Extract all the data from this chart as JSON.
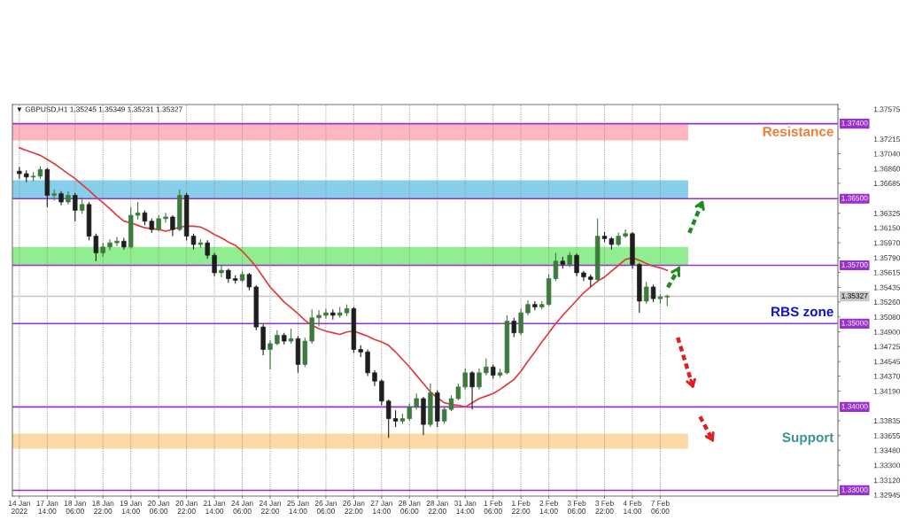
{
  "chart_data": {
    "type": "candlestick",
    "title": "▼ GBPUSD,H1 1.35245 1.35349 1.35231 1.35327",
    "categories": [
      "14 Jan 2022",
      null,
      null,
      null,
      "17 Jan 14:00",
      null,
      null,
      null,
      "18 Jan 06:00",
      null,
      null,
      null,
      "18 Jan 22:00",
      null,
      null,
      null,
      "19 Jan 14:00",
      null,
      null,
      null,
      "20 Jan 06:00",
      null,
      null,
      null,
      "20 Jan 22:00",
      null,
      null,
      null,
      "21 Jan 14:00",
      null,
      null,
      null,
      "24 Jan 06:00",
      null,
      null,
      null,
      "24 Jan 22:00",
      null,
      null,
      null,
      "25 Jan 14:00",
      null,
      null,
      null,
      "26 Jan 06:00",
      null,
      null,
      null,
      "26 Jan 22:00",
      null,
      null,
      null,
      "27 Jan 14:00",
      null,
      null,
      null,
      "28 Jan 06:00",
      null,
      null,
      null,
      "28 Jan 22:00",
      null,
      null,
      null,
      "31 Jan 14:00",
      null,
      null,
      null,
      "1 Feb 06:00",
      null,
      null,
      null,
      "1 Feb 22:00",
      null,
      null,
      null,
      "2 Feb 14:00",
      null,
      null,
      null,
      "3 Feb 06:00",
      null,
      null,
      null,
      "3 Feb 22:00",
      null,
      null,
      null,
      "4 Feb 14:00",
      null,
      null,
      null,
      "7 Feb 06:00",
      null,
      null,
      null,
      null,
      null,
      null,
      null,
      null,
      null,
      null,
      null,
      null,
      null,
      null,
      null,
      null,
      null,
      null,
      null,
      null,
      null,
      null,
      null,
      null,
      null
    ],
    "ohlc": [
      [
        1.3683,
        1.3688,
        1.3674,
        1.368
      ],
      [
        1.368,
        1.3684,
        1.367,
        1.3676
      ],
      [
        1.3676,
        1.3682,
        1.3671,
        1.3677
      ],
      [
        1.3677,
        1.3689,
        1.3674,
        1.3685
      ],
      [
        1.3685,
        1.3687,
        1.364,
        1.3654
      ],
      [
        1.3654,
        1.3661,
        1.3648,
        1.3656
      ],
      [
        1.3656,
        1.3659,
        1.3642,
        1.3646
      ],
      [
        1.3646,
        1.3659,
        1.3643,
        1.3654
      ],
      [
        1.3654,
        1.3657,
        1.3623,
        1.3636
      ],
      [
        1.3636,
        1.3651,
        1.3632,
        1.3643
      ],
      [
        1.3643,
        1.3646,
        1.36,
        1.3605
      ],
      [
        1.3605,
        1.3608,
        1.3575,
        1.3585
      ],
      [
        1.3585,
        1.3597,
        1.358,
        1.3592
      ],
      [
        1.3592,
        1.3601,
        1.3588,
        1.3597
      ],
      [
        1.3597,
        1.3604,
        1.3593,
        1.3599
      ],
      [
        1.3599,
        1.3603,
        1.3589,
        1.3592
      ],
      [
        1.3592,
        1.364,
        1.359,
        1.363
      ],
      [
        1.363,
        1.3646,
        1.3625,
        1.3633
      ],
      [
        1.3633,
        1.3636,
        1.3618,
        1.3623
      ],
      [
        1.3623,
        1.3626,
        1.3609,
        1.3613
      ],
      [
        1.3613,
        1.363,
        1.3611,
        1.3626
      ],
      [
        1.3626,
        1.3633,
        1.3621,
        1.3628
      ],
      [
        1.3628,
        1.363,
        1.3605,
        1.3613
      ],
      [
        1.3613,
        1.3661,
        1.3611,
        1.3654
      ],
      [
        1.3654,
        1.3657,
        1.36,
        1.3605
      ],
      [
        1.3605,
        1.3608,
        1.3589,
        1.3595
      ],
      [
        1.3595,
        1.3601,
        1.3591,
        1.3597
      ],
      [
        1.3597,
        1.36,
        1.3578,
        1.3582
      ],
      [
        1.3582,
        1.3585,
        1.3557,
        1.3561
      ],
      [
        1.3561,
        1.357,
        1.3556,
        1.3564
      ],
      [
        1.3564,
        1.3566,
        1.3549,
        1.3554
      ],
      [
        1.3554,
        1.3558,
        1.3548,
        1.3552
      ],
      [
        1.3552,
        1.3563,
        1.355,
        1.3559
      ],
      [
        1.3559,
        1.3561,
        1.354,
        1.3544
      ],
      [
        1.3544,
        1.3546,
        1.3492,
        1.3496
      ],
      [
        1.3496,
        1.3499,
        1.3462,
        1.3469
      ],
      [
        1.3469,
        1.348,
        1.3445,
        1.3476
      ],
      [
        1.3476,
        1.3492,
        1.3474,
        1.3486
      ],
      [
        1.3486,
        1.3489,
        1.3475,
        1.3479
      ],
      [
        1.3479,
        1.3494,
        1.3476,
        1.3482
      ],
      [
        1.3482,
        1.3485,
        1.3441,
        1.3451
      ],
      [
        1.3451,
        1.3483,
        1.3448,
        1.3479
      ],
      [
        1.3479,
        1.3517,
        1.3476,
        1.3507
      ],
      [
        1.3507,
        1.3516,
        1.3497,
        1.351
      ],
      [
        1.351,
        1.3518,
        1.3506,
        1.3513
      ],
      [
        1.3513,
        1.3517,
        1.3505,
        1.351
      ],
      [
        1.351,
        1.352,
        1.3507,
        1.3513
      ],
      [
        1.3513,
        1.3523,
        1.3509,
        1.3518
      ],
      [
        1.3518,
        1.352,
        1.3465,
        1.3469
      ],
      [
        1.3469,
        1.3474,
        1.346,
        1.3466
      ],
      [
        1.3466,
        1.3469,
        1.3437,
        1.3441
      ],
      [
        1.3441,
        1.3444,
        1.3425,
        1.3431
      ],
      [
        1.3431,
        1.3433,
        1.3402,
        1.3407
      ],
      [
        1.3407,
        1.3409,
        1.3363,
        1.3386
      ],
      [
        1.3386,
        1.3396,
        1.3376,
        1.3383
      ],
      [
        1.3383,
        1.3392,
        1.338,
        1.3386
      ],
      [
        1.3386,
        1.3404,
        1.3383,
        1.34
      ],
      [
        1.34,
        1.3416,
        1.3397,
        1.341
      ],
      [
        1.341,
        1.3412,
        1.3366,
        1.3379
      ],
      [
        1.3379,
        1.3428,
        1.3376,
        1.3417
      ],
      [
        1.3417,
        1.342,
        1.3376,
        1.3383
      ],
      [
        1.3383,
        1.3401,
        1.338,
        1.3397
      ],
      [
        1.3397,
        1.3414,
        1.3395,
        1.341
      ],
      [
        1.341,
        1.3428,
        1.3408,
        1.3424
      ],
      [
        1.3424,
        1.3446,
        1.3421,
        1.3441
      ],
      [
        1.3441,
        1.3443,
        1.3397,
        1.3424
      ],
      [
        1.3424,
        1.3446,
        1.3421,
        1.3441
      ],
      [
        1.3441,
        1.3458,
        1.3438,
        1.3448
      ],
      [
        1.3448,
        1.3451,
        1.3434,
        1.3438
      ],
      [
        1.3438,
        1.3446,
        1.3435,
        1.3441
      ],
      [
        1.3441,
        1.351,
        1.3439,
        1.3503
      ],
      [
        1.3503,
        1.3507,
        1.3484,
        1.3489
      ],
      [
        1.3489,
        1.3518,
        1.3486,
        1.3513
      ],
      [
        1.3513,
        1.3528,
        1.351,
        1.3523
      ],
      [
        1.3523,
        1.3527,
        1.3516,
        1.352
      ],
      [
        1.352,
        1.3527,
        1.3517,
        1.3523
      ],
      [
        1.3523,
        1.3559,
        1.3521,
        1.3554
      ],
      [
        1.3554,
        1.3585,
        1.3551,
        1.3575
      ],
      [
        1.3575,
        1.358,
        1.3566,
        1.3571
      ],
      [
        1.3571,
        1.3586,
        1.3568,
        1.3582
      ],
      [
        1.3582,
        1.3584,
        1.3557,
        1.3561
      ],
      [
        1.3561,
        1.3563,
        1.3551,
        1.3556
      ],
      [
        1.3556,
        1.3559,
        1.3544,
        1.3553
      ],
      [
        1.3553,
        1.3626,
        1.355,
        1.3605
      ],
      [
        1.3605,
        1.361,
        1.3598,
        1.3602
      ],
      [
        1.3602,
        1.3604,
        1.3589,
        1.3595
      ],
      [
        1.3595,
        1.3609,
        1.3593,
        1.3605
      ],
      [
        1.3605,
        1.3613,
        1.3603,
        1.3608
      ],
      [
        1.3608,
        1.361,
        1.3566,
        1.3571
      ],
      [
        1.3571,
        1.3573,
        1.3513,
        1.3527
      ],
      [
        1.3527,
        1.355,
        1.3524,
        1.3544
      ],
      [
        1.3544,
        1.3547,
        1.3526,
        1.353
      ],
      [
        1.353,
        1.3535,
        1.3524,
        1.3532
      ],
      [
        1.3532,
        1.3535,
        1.3521,
        1.3533
      ],
      null,
      null,
      null,
      null,
      null,
      null,
      null,
      null,
      null,
      null,
      null,
      null,
      null,
      null,
      null,
      null,
      null,
      null,
      null,
      null,
      null,
      null,
      null,
      null
    ],
    "colors": [
      "#1e1e1e",
      "#1e1e1e",
      "#3d7a3d",
      "#3d7a3d",
      "#1e1e1e",
      "#3d7a3d",
      "#1e1e1e",
      "#3d7a3d",
      "#1e1e1e",
      "#3d7a3d",
      "#1e1e1e",
      "#1e1e1e",
      "#3d7a3d",
      "#3d7a3d",
      "#3d7a3d",
      "#1e1e1e",
      "#3d7a3d",
      "#3d7a3d",
      "#1e1e1e",
      "#1e1e1e",
      "#3d7a3d",
      "#3d7a3d",
      "#1e1e1e",
      "#3d7a3d",
      "#1e1e1e",
      "#1e1e1e",
      "#3d7a3d",
      "#1e1e1e",
      "#1e1e1e",
      "#3d7a3d",
      "#1e1e1e",
      "#1e1e1e",
      "#3d7a3d",
      "#1e1e1e",
      "#1e1e1e",
      "#1e1e1e",
      "#3d7a3d",
      "#3d7a3d",
      "#1e1e1e",
      "#3d7a3d",
      "#1e1e1e",
      "#3d7a3d",
      "#3d7a3d",
      "#3d7a3d",
      "#3d7a3d",
      "#1e1e1e",
      "#3d7a3d",
      "#3d7a3d",
      "#1e1e1e",
      "#1e1e1e",
      "#1e1e1e",
      "#1e1e1e",
      "#1e1e1e",
      "#1e1e1e",
      "#1e1e1e",
      "#3d7a3d",
      "#3d7a3d",
      "#3d7a3d",
      "#1e1e1e",
      "#3d7a3d",
      "#1e1e1e",
      "#3d7a3d",
      "#3d7a3d",
      "#3d7a3d",
      "#3d7a3d",
      "#1e1e1e",
      "#3d7a3d",
      "#3d7a3d",
      "#1e1e1e",
      "#3d7a3d",
      "#3d7a3d",
      "#1e1e1e",
      "#3d7a3d",
      "#3d7a3d",
      "#1e1e1e",
      "#3d7a3d",
      "#3d7a3d",
      "#3d7a3d",
      "#1e1e1e",
      "#3d7a3d",
      "#1e1e1e",
      "#1e1e1e",
      "#1e1e1e",
      "#3d7a3d",
      "#1e1e1e",
      "#1e1e1e",
      "#3d7a3d",
      "#3d7a3d",
      "#1e1e1e",
      "#1e1e1e",
      "#3d7a3d",
      "#1e1e1e",
      "#3d7a3d",
      "#3d7a3d",
      null,
      null,
      null,
      null,
      null,
      null,
      null,
      null,
      null,
      null,
      null,
      null,
      null,
      null,
      null,
      null,
      null,
      null,
      null,
      null,
      null,
      null,
      null,
      null
    ],
    "series": [
      {
        "type": "line",
        "color": "#e03a3a",
        "values": [
          1.3711,
          1.3708,
          1.3705,
          1.3702,
          1.3697,
          1.3692,
          1.3686,
          1.368,
          1.3674,
          1.3667,
          1.366,
          1.3652,
          1.3645,
          1.3638,
          1.363,
          1.3623,
          1.3621,
          1.3618,
          1.3615,
          1.3614,
          1.3613,
          1.3611,
          1.3613,
          1.3616,
          1.3617,
          1.3617,
          1.3616,
          1.3612,
          1.3607,
          1.3603,
          1.3598,
          1.3594,
          1.3587,
          1.3578,
          1.3568,
          1.3556,
          1.3544,
          1.3535,
          1.3526,
          1.3519,
          1.3512,
          1.3504,
          1.3498,
          1.3494,
          1.3491,
          1.3489,
          1.3487,
          1.349,
          1.3491,
          1.3488,
          1.3485,
          1.3481,
          1.3478,
          1.3474,
          1.3466,
          1.3457,
          1.3448,
          1.3438,
          1.3428,
          1.3418,
          1.3411,
          1.3405,
          1.3403,
          1.3402,
          1.34,
          1.3405,
          1.341,
          1.3413,
          1.3416,
          1.3421,
          1.3427,
          1.3433,
          1.3443,
          1.3455,
          1.3466,
          1.3478,
          1.3489,
          1.35,
          1.351,
          1.3519,
          1.3528,
          1.3537,
          1.3544,
          1.3551,
          1.3556,
          1.3563,
          1.357,
          1.3577,
          1.3579,
          1.3576,
          1.3572,
          1.3569,
          1.3567,
          1.3564,
          null,
          null,
          null,
          null,
          null,
          null,
          null,
          null,
          null,
          null,
          null,
          null,
          null,
          null,
          null,
          null,
          null,
          null,
          null,
          null,
          null,
          null,
          null,
          null
        ]
      }
    ],
    "ylim": [
      1.3293,
      1.3763
    ],
    "yticks": [
      1.37575,
      1.37215,
      {
        "value": 1.3704,
        "label": "1.37040"
      },
      {
        "value": 1.3686,
        "label": "1.36860"
      },
      1.36685,
      1.36325,
      {
        "value": 1.3615,
        "label": "1.36150"
      },
      {
        "value": 1.3597,
        "label": "1.35970"
      },
      {
        "value": 1.3579,
        "label": "1.35790"
      },
      1.35615,
      1.35435,
      {
        "value": 1.3526,
        "label": "1.35260"
      },
      {
        "value": 1.3508,
        "label": "1.35080"
      },
      {
        "value": 1.349,
        "label": "1.34900"
      },
      1.34725,
      1.34545,
      {
        "value": 1.3437,
        "label": "1.34370"
      },
      {
        "value": 1.3419,
        "label": "1.34190"
      },
      1.33835,
      1.33655,
      {
        "value": 1.3348,
        "label": "1.33480"
      },
      {
        "value": 1.333,
        "label": "1.33300"
      },
      {
        "value": 1.3312,
        "label": "1.33120"
      },
      1.32945
    ],
    "ref_lines": [
      {
        "axis": "y",
        "value": 1.374,
        "label": "1.37400",
        "color": "#9932cc"
      },
      {
        "axis": "y",
        "value": 1.365,
        "label": "1.36500",
        "color": "#9932cc"
      },
      {
        "axis": "y",
        "value": 1.357,
        "label": "1.35700",
        "color": "#9932cc"
      },
      {
        "axis": "y",
        "value": 1.35,
        "label": "1.35000",
        "color": "#9932cc"
      },
      {
        "axis": "y",
        "value": 1.34,
        "label": "1.34000",
        "color": "#9932cc"
      },
      {
        "axis": "y",
        "value": 1.33,
        "label": "1.33000",
        "color": "#9932cc"
      },
      {
        "axis": "y",
        "value": 1.35327,
        "label": "1.35327",
        "color": "#c8c8c8"
      }
    ],
    "bands": [
      {
        "axis": "y",
        "from": 1.372,
        "to": 1.374,
        "color": "#ffb6c1"
      },
      {
        "axis": "y",
        "from": 1.365,
        "to": 1.3672,
        "color": "#87ceeb"
      },
      {
        "axis": "y",
        "from": 1.357,
        "to": 1.3592,
        "color": "#90ee90"
      },
      {
        "axis": "y",
        "from": 1.335,
        "to": 1.3368,
        "color": "#fdd9a6"
      }
    ],
    "annotations": [
      "Resistance",
      "RBS zone",
      "Support"
    ],
    "grid": "x"
  }
}
